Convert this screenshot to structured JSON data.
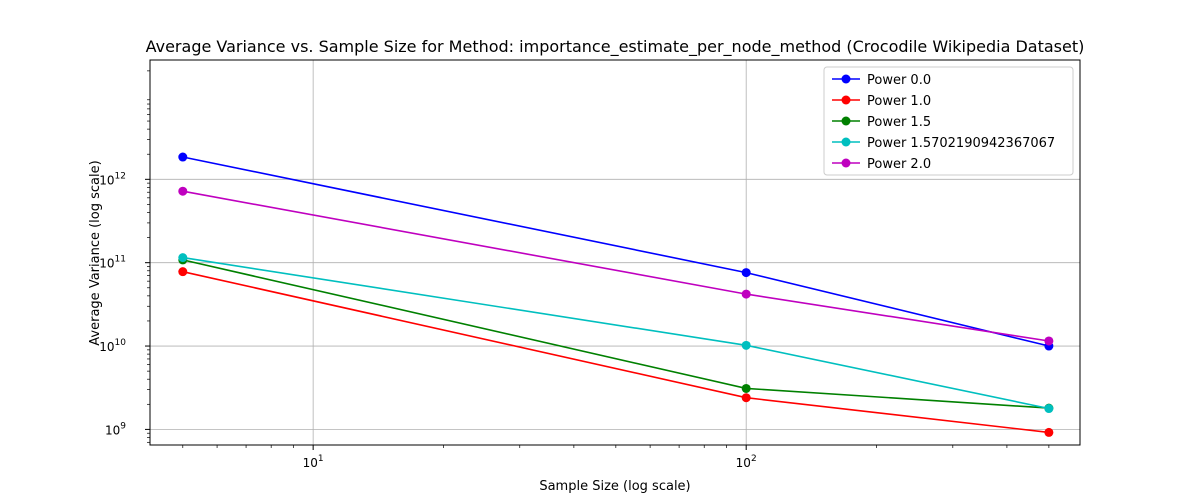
{
  "chart_data": {
    "type": "line",
    "title": "Average Variance vs. Sample Size for Method: importance_estimate_per_node_method (Crocodile Wikipedia Dataset)",
    "xlabel": "Sample Size (log scale)",
    "ylabel": "Average Variance (log scale)",
    "xscale": "log",
    "yscale": "log",
    "xlim": [
      4.2,
      590
    ],
    "ylim": [
      650000000,
      27000000000000
    ],
    "grid": true,
    "legend_position": "top-right",
    "x": [
      5,
      100,
      500
    ],
    "x_ticks": [
      {
        "value": 10,
        "base": "10",
        "exp": "1"
      },
      {
        "value": 100,
        "base": "10",
        "exp": "2"
      }
    ],
    "y_ticks": [
      {
        "value": 1000000000,
        "base": "10",
        "exp": "9"
      },
      {
        "value": 10000000000,
        "base": "10",
        "exp": "10"
      },
      {
        "value": 100000000000,
        "base": "10",
        "exp": "11"
      },
      {
        "value": 1000000000000,
        "base": "10",
        "exp": "12"
      }
    ],
    "series": [
      {
        "name": "Power 0.0",
        "color": "#0000ff",
        "values": [
          1850000000000,
          76000000000,
          10000000000
        ]
      },
      {
        "name": "Power 1.0",
        "color": "#ff0000",
        "values": [
          78000000000,
          2400000000,
          920000000
        ]
      },
      {
        "name": "Power 1.5",
        "color": "#008000",
        "values": [
          108000000000,
          3100000000,
          1800000000
        ]
      },
      {
        "name": "Power 1.5702190942367067",
        "color": "#00bfbf",
        "values": [
          115000000000,
          10200000000,
          1780000000
        ]
      },
      {
        "name": "Power 2.0",
        "color": "#bf00bf",
        "values": [
          720000000000,
          42000000000,
          11500000000
        ]
      }
    ]
  }
}
